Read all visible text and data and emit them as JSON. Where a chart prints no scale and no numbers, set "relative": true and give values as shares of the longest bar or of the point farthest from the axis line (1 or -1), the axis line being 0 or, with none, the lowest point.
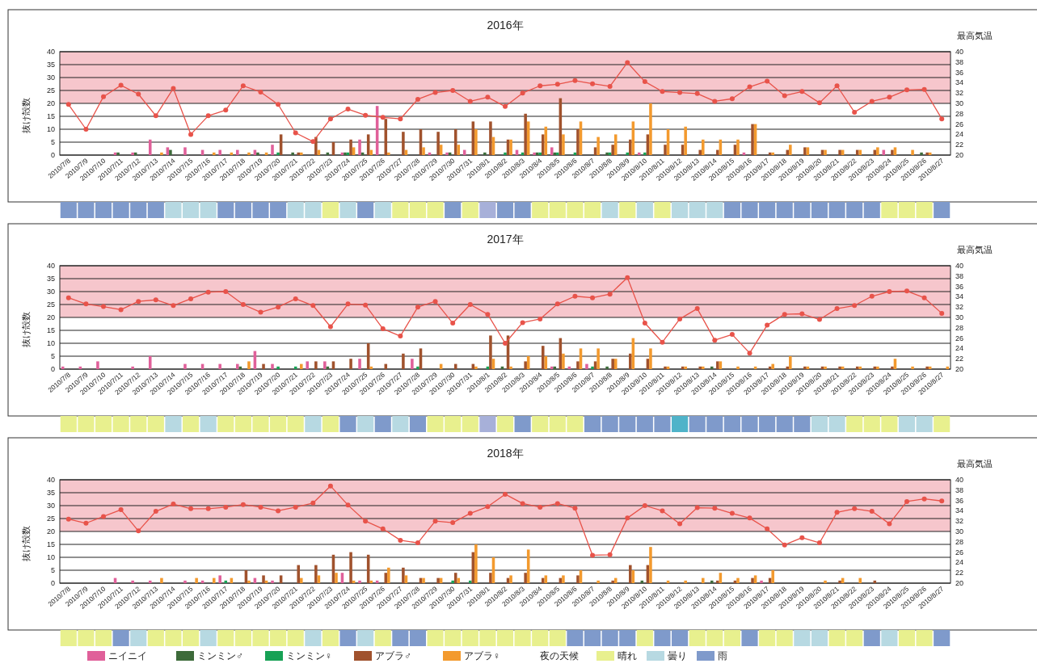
{
  "chart_data": [
    {
      "type": "bar",
      "title": "2016年",
      "ylabel": "抜け殻数",
      "y2label": "最高気温",
      "grid": "y",
      "marker": "circle",
      "legend": false,
      "categories": [
        "2010/7/8",
        "2010/7/9",
        "2010/7/10",
        "2010/7/11",
        "2010/7/12",
        "2010/7/13",
        "2010/7/14",
        "2010/7/15",
        "2010/7/16",
        "2010/7/17",
        "2010/7/18",
        "2010/7/19",
        "2010/7/20",
        "2010/7/21",
        "2010/7/22",
        "2010/7/23",
        "2010/7/24",
        "2010/7/25",
        "2010/7/26",
        "2010/7/27",
        "2010/7/28",
        "2010/7/29",
        "2010/7/30",
        "2010/7/31",
        "2010/8/1",
        "2010/8/2",
        "2010/8/3",
        "2010/8/4",
        "2010/8/5",
        "2010/8/6",
        "2010/8/7",
        "2010/8/8",
        "2010/8/9",
        "2010/8/10",
        "2010/8/11",
        "2010/8/12",
        "2010/8/13",
        "2010/8/14",
        "2010/8/15",
        "2010/8/16",
        "2010/8/17",
        "2010/8/18",
        "2010/8/19",
        "2010/8/20",
        "2010/8/21",
        "2010/8/22",
        "2010/8/23",
        "2010/8/24",
        "2010/8/25",
        "2010/8/26",
        "2010/8/27"
      ],
      "ylim": [
        0,
        40
      ],
      "yticks": [
        0,
        5,
        10,
        15,
        20,
        25,
        30,
        35,
        40
      ],
      "y2lim": [
        20,
        40
      ],
      "y2ticks": [
        20,
        22,
        24,
        26,
        28,
        30,
        32,
        34,
        36,
        38,
        40
      ],
      "series": [
        {
          "color": "#e0609a",
          "values": [
            0,
            0,
            0,
            1,
            1,
            6,
            3,
            3,
            2,
            2,
            2,
            2,
            4,
            0,
            0,
            0,
            1,
            6,
            19,
            0,
            0,
            1,
            1,
            2,
            0,
            0,
            2,
            1,
            3,
            0,
            0,
            0,
            0,
            1,
            0,
            0,
            0,
            0,
            0,
            1,
            0,
            0,
            0,
            0,
            0,
            0,
            0,
            2,
            0,
            0,
            0
          ]
        },
        {
          "color": "#3d6b3a",
          "values": [
            0,
            0,
            0,
            1,
            1,
            0,
            2,
            0,
            0,
            0,
            0,
            1,
            0,
            1,
            0,
            1,
            1,
            1,
            0,
            0,
            0,
            0,
            1,
            0,
            1,
            0,
            0,
            1,
            1,
            0,
            0,
            1,
            0,
            0,
            0,
            0,
            0,
            0,
            0,
            0,
            0,
            0,
            0,
            0,
            0,
            0,
            0,
            0,
            0,
            1,
            0
          ]
        },
        {
          "color": "#17a155",
          "values": [
            0,
            0,
            0,
            0,
            0,
            0,
            0,
            0,
            0,
            0,
            0,
            0,
            1,
            0,
            0,
            0,
            1,
            0,
            0,
            0,
            0,
            0,
            0,
            0,
            0,
            1,
            1,
            1,
            1,
            1,
            0,
            1,
            1,
            1,
            0,
            0,
            0,
            0,
            0,
            0,
            0,
            0,
            0,
            0,
            0,
            0,
            0,
            0,
            0,
            0,
            0
          ]
        },
        {
          "color": "#a0522d",
          "values": [
            0,
            0,
            0,
            0,
            0,
            0,
            0,
            0,
            0,
            0,
            0,
            0,
            8,
            1,
            7,
            5,
            6,
            8,
            14,
            9,
            10,
            9,
            10,
            13,
            13,
            6,
            16,
            8,
            22,
            10,
            3,
            4,
            6,
            8,
            4,
            4,
            2,
            2,
            4,
            12,
            1,
            2,
            3,
            2,
            2,
            2,
            2,
            2,
            0,
            1,
            0
          ]
        },
        {
          "color": "#f39a2e",
          "values": [
            0,
            0,
            0,
            0,
            0,
            1,
            0,
            0,
            1,
            1,
            1,
            1,
            0,
            1,
            2,
            0,
            3,
            2,
            1,
            2,
            3,
            4,
            4,
            10,
            7,
            6,
            13,
            11,
            8,
            13,
            7,
            8,
            13,
            20,
            10,
            11,
            6,
            6,
            6,
            12,
            1,
            4,
            3,
            2,
            2,
            2,
            3,
            3,
            2,
            1,
            0
          ]
        },
        {
          "type": "line",
          "axis": "y2",
          "color": "#e8534a",
          "values": [
            29.8,
            25.0,
            31.3,
            33.5,
            31.8,
            27.6,
            32.9,
            24.0,
            27.6,
            28.7,
            33.4,
            32.2,
            29.8,
            24.3,
            22.6,
            27.0,
            28.9,
            27.7,
            27.3,
            27.0,
            30.8,
            32.1,
            32.5,
            30.4,
            31.2,
            29.4,
            32.0,
            33.4,
            33.7,
            34.4,
            33.8,
            33.3,
            37.9,
            34.2,
            32.3,
            32.1,
            31.9,
            30.4,
            30.9,
            33.2,
            34.3,
            31.5,
            32.3,
            30.1,
            33.4,
            28.3,
            30.4,
            31.2,
            32.6,
            32.7,
            27.0
          ]
        }
      ],
      "bands": [
        {
          "axis": "y2",
          "from": 30,
          "to": 40,
          "color": "#f6c6cc"
        }
      ]
    },
    {
      "type": "bar",
      "relative": true,
      "legend": false,
      "categories": [
        null,
        null,
        null,
        null,
        null,
        null,
        null,
        null,
        null,
        null,
        null,
        null,
        null,
        null,
        null,
        null,
        null,
        null,
        null,
        null,
        null,
        null,
        null,
        null,
        null,
        null,
        null,
        null,
        null,
        null,
        null,
        null,
        null,
        null,
        null,
        null,
        null,
        null,
        null,
        null,
        null,
        null,
        null,
        null,
        null,
        null,
        null,
        null,
        null,
        null,
        null
      ],
      "series": [
        {
          "color": "#e8f08e",
          "values": [
            null,
            null,
            null,
            null,
            null,
            null,
            null,
            null,
            null,
            null,
            null,
            null,
            null,
            null,
            null,
            1,
            null,
            null,
            null,
            1,
            1,
            1,
            null,
            1,
            null,
            null,
            null,
            1,
            1,
            1,
            1,
            null,
            1,
            null,
            1,
            null,
            null,
            null,
            null,
            null,
            null,
            null,
            null,
            null,
            null,
            null,
            null,
            1,
            1,
            1,
            null
          ]
        },
        {
          "color": "#b7d9e2",
          "values": [
            null,
            null,
            null,
            null,
            null,
            null,
            1,
            1,
            1,
            null,
            null,
            null,
            null,
            1,
            1,
            null,
            1,
            null,
            1,
            null,
            null,
            null,
            null,
            null,
            null,
            null,
            null,
            null,
            null,
            null,
            null,
            1,
            null,
            1,
            null,
            1,
            1,
            1,
            null,
            null,
            null,
            null,
            null,
            null,
            null,
            null,
            null,
            null,
            null,
            null,
            null
          ]
        },
        {
          "color": "#7f9acb",
          "values": [
            1,
            1,
            1,
            1,
            1,
            1,
            null,
            null,
            null,
            1,
            1,
            1,
            1,
            null,
            null,
            null,
            null,
            1,
            null,
            null,
            null,
            null,
            1,
            null,
            null,
            1,
            1,
            null,
            null,
            null,
            null,
            null,
            null,
            null,
            null,
            null,
            null,
            null,
            1,
            1,
            1,
            1,
            1,
            1,
            1,
            1,
            1,
            null,
            null,
            null,
            1
          ]
        },
        {
          "color": "#a7b0d9",
          "values": [
            null,
            null,
            null,
            null,
            null,
            null,
            null,
            null,
            null,
            null,
            null,
            null,
            null,
            null,
            null,
            null,
            null,
            null,
            null,
            null,
            null,
            null,
            null,
            null,
            1,
            null,
            null,
            null,
            null,
            null,
            null,
            null,
            null,
            null,
            null,
            null,
            null,
            null,
            null,
            null,
            null,
            null,
            null,
            null,
            null,
            null,
            null,
            null,
            null,
            null,
            null
          ]
        }
      ]
    },
    {
      "type": "bar",
      "title": "2017年",
      "ylabel": "抜け殻数",
      "y2label": "最高気温",
      "grid": "y",
      "marker": "circle",
      "legend": false,
      "categories": [
        "2010/7/8",
        "2010/7/9",
        "2010/7/10",
        "2010/7/11",
        "2010/7/12",
        "2010/7/13",
        "2010/7/14",
        "2010/7/15",
        "2010/7/16",
        "2010/7/17",
        "2010/7/18",
        "2010/7/19",
        "2010/7/20",
        "2010/7/21",
        "2010/7/22",
        "2010/7/23",
        "2010/7/24",
        "2010/7/25",
        "2010/7/26",
        "2010/7/27",
        "2010/7/28",
        "2010/7/29",
        "2010/7/30",
        "2010/7/31",
        "2010/8/1",
        "2010/8/2",
        "2010/8/3",
        "2010/8/4",
        "2010/8/5",
        "2010/8/6",
        "2010/8/7",
        "2010/8/8",
        "2010/8/9",
        "2010/8/10",
        "2010/8/11",
        "2010/8/12",
        "2010/8/13",
        "2010/8/14",
        "2010/8/15",
        "2010/8/16",
        "2010/8/17",
        "2010/8/18",
        "2010/8/19",
        "2010/8/20",
        "2010/8/21",
        "2010/8/22",
        "2010/8/23",
        "2010/8/24",
        "2010/8/25",
        "2010/8/26",
        "2010/8/27"
      ],
      "ylim": [
        0,
        40
      ],
      "yticks": [
        0,
        5,
        10,
        15,
        20,
        25,
        30,
        35,
        40
      ],
      "y2lim": [
        20,
        40
      ],
      "y2ticks": [
        20,
        22,
        24,
        26,
        28,
        30,
        32,
        34,
        36,
        38,
        40
      ],
      "series": [
        {
          "color": "#e0609a",
          "values": [
            1,
            1,
            3,
            0,
            1,
            5,
            0,
            2,
            2,
            2,
            2,
            7,
            2,
            0,
            3,
            3,
            0,
            4,
            0,
            0,
            4,
            0,
            0,
            0,
            0,
            0,
            0,
            0,
            1,
            1,
            2,
            0,
            0,
            0,
            0,
            0,
            0,
            0,
            0,
            0,
            0,
            0,
            0,
            0,
            0,
            0,
            0,
            0,
            0,
            0,
            0
          ]
        },
        {
          "color": "#3d6b3a",
          "values": [
            0,
            0,
            0,
            0,
            0,
            0,
            0,
            0,
            0,
            0,
            1,
            0,
            0,
            0,
            0,
            1,
            0,
            0,
            0,
            0,
            0,
            0,
            0,
            0,
            0,
            1,
            0,
            0,
            1,
            0,
            0,
            1,
            0,
            0,
            0,
            0,
            0,
            1,
            0,
            0,
            0,
            0,
            0,
            0,
            0,
            0,
            0,
            0,
            0,
            0,
            0
          ]
        },
        {
          "color": "#17a155",
          "values": [
            0,
            0,
            0,
            0,
            0,
            0,
            0,
            0,
            0,
            0,
            0,
            0,
            1,
            1,
            0,
            0,
            0,
            0,
            0,
            0,
            1,
            0,
            0,
            0,
            1,
            0,
            0,
            0,
            0,
            0,
            1,
            0,
            0,
            0,
            0,
            0,
            0,
            0,
            0,
            0,
            0,
            0,
            0,
            0,
            0,
            0,
            0,
            0,
            0,
            0,
            0
          ]
        },
        {
          "color": "#a0522d",
          "values": [
            0,
            0,
            0,
            0,
            0,
            0,
            0,
            0,
            0,
            0,
            0,
            2,
            0,
            0,
            3,
            3,
            4,
            10,
            2,
            6,
            8,
            0,
            2,
            2,
            13,
            13,
            3,
            9,
            12,
            3,
            3,
            4,
            6,
            4,
            1,
            1,
            1,
            3,
            0,
            0,
            1,
            1,
            1,
            1,
            1,
            1,
            1,
            1,
            0,
            1,
            0
          ]
        },
        {
          "color": "#f39a2e",
          "values": [
            0,
            0,
            0,
            0,
            0,
            0,
            0,
            0,
            0,
            0,
            3,
            0,
            0,
            2,
            0,
            0,
            0,
            1,
            0,
            0,
            0,
            2,
            0,
            1,
            4,
            1,
            5,
            5,
            6,
            8,
            8,
            4,
            12,
            8,
            1,
            1,
            1,
            3,
            1,
            1,
            2,
            5,
            1,
            1,
            1,
            1,
            1,
            4,
            1,
            1,
            1
          ]
        },
        {
          "type": "line",
          "axis": "y2",
          "color": "#e8534a",
          "values": [
            33.8,
            32.6,
            32.1,
            31.5,
            33.1,
            33.4,
            32.3,
            33.6,
            34.9,
            35.0,
            32.5,
            31.0,
            32.0,
            33.6,
            32.3,
            28.2,
            32.6,
            32.4,
            27.8,
            26.4,
            32.0,
            33.1,
            28.9,
            32.5,
            30.6,
            25.0,
            29.0,
            29.7,
            32.6,
            34.1,
            33.8,
            34.5,
            37.7,
            28.9,
            25.2,
            29.7,
            31.7,
            25.6,
            26.7,
            23.1,
            28.5,
            30.6,
            30.7,
            29.6,
            31.7,
            32.3,
            34.1,
            35.0,
            35.1,
            33.8,
            30.8
          ]
        }
      ],
      "bands": [
        {
          "axis": "y2",
          "from": 30,
          "to": 40,
          "color": "#f6c6cc"
        }
      ]
    },
    {
      "type": "bar",
      "relative": true,
      "legend": false,
      "categories": [
        null,
        null,
        null,
        null,
        null,
        null,
        null,
        null,
        null,
        null,
        null,
        null,
        null,
        null,
        null,
        null,
        null,
        null,
        null,
        null,
        null,
        null,
        null,
        null,
        null,
        null,
        null,
        null,
        null,
        null,
        null,
        null,
        null,
        null,
        null,
        null,
        null,
        null,
        null,
        null,
        null,
        null,
        null,
        null,
        null,
        null,
        null,
        null,
        null,
        null,
        null
      ],
      "series": [
        {
          "color": "#e8f08e",
          "values": [
            1,
            1,
            1,
            1,
            1,
            1,
            null,
            1,
            null,
            1,
            1,
            1,
            1,
            1,
            null,
            1,
            null,
            null,
            null,
            null,
            null,
            1,
            1,
            1,
            null,
            1,
            null,
            1,
            1,
            1,
            null,
            null,
            null,
            null,
            null,
            null,
            null,
            null,
            null,
            null,
            null,
            null,
            null,
            null,
            null,
            1,
            1,
            1,
            null,
            null,
            1
          ]
        },
        {
          "color": "#b7d9e2",
          "values": [
            null,
            null,
            null,
            null,
            null,
            null,
            1,
            null,
            1,
            null,
            null,
            null,
            null,
            null,
            1,
            null,
            null,
            1,
            null,
            1,
            null,
            null,
            null,
            null,
            null,
            null,
            null,
            null,
            null,
            null,
            null,
            null,
            null,
            null,
            null,
            null,
            null,
            null,
            null,
            null,
            null,
            null,
            null,
            1,
            1,
            null,
            null,
            null,
            1,
            1,
            null
          ]
        },
        {
          "color": "#7f9acb",
          "values": [
            null,
            null,
            null,
            null,
            null,
            null,
            null,
            null,
            null,
            null,
            null,
            null,
            null,
            null,
            null,
            null,
            1,
            null,
            1,
            null,
            1,
            null,
            null,
            null,
            null,
            null,
            1,
            null,
            null,
            null,
            1,
            1,
            1,
            1,
            1,
            null,
            1,
            1,
            1,
            1,
            1,
            1,
            1,
            null,
            null,
            null,
            null,
            null,
            null,
            null,
            null
          ]
        },
        {
          "color": "#a7b0d9",
          "values": [
            null,
            null,
            null,
            null,
            null,
            null,
            null,
            null,
            null,
            null,
            null,
            null,
            null,
            null,
            null,
            null,
            null,
            null,
            null,
            null,
            null,
            null,
            null,
            null,
            1,
            null,
            null,
            null,
            null,
            null,
            null,
            null,
            null,
            null,
            null,
            null,
            null,
            null,
            null,
            null,
            null,
            null,
            null,
            null,
            null,
            null,
            null,
            null,
            null,
            null,
            null
          ]
        },
        {
          "color": "#4fb3c9",
          "values": [
            null,
            null,
            null,
            null,
            null,
            null,
            null,
            null,
            null,
            null,
            null,
            null,
            null,
            null,
            null,
            null,
            null,
            null,
            null,
            null,
            null,
            null,
            null,
            null,
            null,
            null,
            null,
            null,
            null,
            null,
            null,
            null,
            null,
            null,
            null,
            1,
            null,
            null,
            null,
            null,
            null,
            null,
            null,
            null,
            null,
            null,
            null,
            null,
            null,
            null,
            null
          ]
        }
      ]
    },
    {
      "type": "bar",
      "title": "2018年",
      "ylabel": "抜け殻数",
      "y2label": "最高気温",
      "grid": "y",
      "marker": "circle",
      "legend": "bottom",
      "categories": [
        "2010/7/8",
        "2010/7/9",
        "2010/7/10",
        "2010/7/11",
        "2010/7/12",
        "2010/7/13",
        "2010/7/14",
        "2010/7/15",
        "2010/7/16",
        "2010/7/17",
        "2010/7/18",
        "2010/7/19",
        "2010/7/20",
        "2010/7/21",
        "2010/7/22",
        "2010/7/23",
        "2010/7/24",
        "2010/7/25",
        "2010/7/26",
        "2010/7/27",
        "2010/7/28",
        "2010/7/29",
        "2010/7/30",
        "2010/7/31",
        "2010/8/1",
        "2010/8/2",
        "2010/8/3",
        "2010/8/4",
        "2010/8/5",
        "2010/8/6",
        "2010/8/7",
        "2010/8/8",
        "2010/8/9",
        "2010/8/10",
        "2010/8/11",
        "2010/8/12",
        "2010/8/13",
        "2010/8/14",
        "2010/8/15",
        "2010/8/16",
        "2010/8/17",
        "2010/8/18",
        "2010/8/19",
        "2010/8/20",
        "2010/8/21",
        "2010/8/22",
        "2010/8/23",
        "2010/8/24",
        "2010/8/25",
        "2010/8/26",
        "2010/8/27"
      ],
      "ylim": [
        0,
        40
      ],
      "yticks": [
        0,
        5,
        10,
        15,
        20,
        25,
        30,
        35,
        40
      ],
      "y2lim": [
        20,
        40
      ],
      "y2ticks": [
        20,
        22,
        24,
        26,
        28,
        30,
        32,
        34,
        36,
        38,
        40
      ],
      "series": [
        {
          "name": "ニイニイ",
          "color": "#e0609a",
          "values": [
            0,
            0,
            0,
            2,
            1,
            1,
            0,
            1,
            1,
            3,
            0,
            2,
            1,
            0,
            0,
            0,
            4,
            1,
            1,
            0,
            0,
            0,
            0,
            0,
            0,
            0,
            0,
            0,
            0,
            0,
            0,
            0,
            0,
            0,
            0,
            0,
            0,
            0,
            0,
            0,
            1,
            0,
            0,
            0,
            0,
            0,
            0,
            0,
            0,
            0,
            0
          ]
        },
        {
          "name": "ミンミン♂",
          "color": "#3d6b3a",
          "values": [
            0,
            0,
            0,
            0,
            0,
            0,
            0,
            0,
            0,
            0,
            0,
            0,
            0,
            0,
            0,
            0,
            0,
            0,
            0,
            0,
            0,
            0,
            0,
            0,
            0,
            0,
            0,
            0,
            0,
            0,
            0,
            0,
            0,
            1,
            0,
            0,
            0,
            1,
            0,
            0,
            0,
            0,
            0,
            0,
            0,
            0,
            0,
            0,
            0,
            0,
            0
          ]
        },
        {
          "name": "ミンミン♀",
          "color": "#17a155",
          "values": [
            0,
            0,
            0,
            0,
            0,
            0,
            0,
            0,
            0,
            1,
            0,
            0,
            0,
            0,
            0,
            0,
            0,
            0,
            0,
            0,
            0,
            0,
            1,
            1,
            0,
            0,
            0,
            0,
            0,
            0,
            0,
            0,
            0,
            0,
            0,
            0,
            0,
            0,
            0,
            0,
            0,
            0,
            0,
            0,
            0,
            0,
            0,
            0,
            0,
            0,
            0
          ]
        },
        {
          "name": "アブラ♂",
          "color": "#a0522d",
          "values": [
            0,
            0,
            0,
            0,
            0,
            0,
            0,
            0,
            0,
            0,
            5,
            3,
            3,
            7,
            7,
            11,
            12,
            11,
            4,
            6,
            2,
            2,
            4,
            12,
            4,
            2,
            4,
            2,
            2,
            3,
            0,
            1,
            7,
            7,
            0,
            0,
            0,
            1,
            1,
            2,
            2,
            0,
            0,
            0,
            1,
            0,
            1,
            0,
            0,
            0,
            0
          ]
        },
        {
          "name": "アブラ♀",
          "color": "#f39a2e",
          "values": [
            0,
            0,
            0,
            0,
            0,
            2,
            0,
            2,
            2,
            2,
            1,
            1,
            0,
            2,
            3,
            4,
            1,
            1,
            6,
            3,
            2,
            2,
            2,
            15,
            10,
            3,
            13,
            3,
            3,
            5,
            1,
            2,
            5,
            14,
            1,
            1,
            2,
            4,
            2,
            3,
            5,
            0,
            0,
            1,
            2,
            2,
            0,
            0,
            0,
            0,
            0
          ]
        },
        {
          "type": "line",
          "axis": "y2",
          "color": "#e8534a",
          "values": [
            32.4,
            31.6,
            32.9,
            34.2,
            30.1,
            33.9,
            35.3,
            34.4,
            34.4,
            34.7,
            35.2,
            34.7,
            34.0,
            34.7,
            35.5,
            38.8,
            35.1,
            32.0,
            30.5,
            28.3,
            27.8,
            32.0,
            31.7,
            33.5,
            34.8,
            37.2,
            35.4,
            34.7,
            35.4,
            34.5,
            25.4,
            25.5,
            32.6,
            35.0,
            34.0,
            31.5,
            34.6,
            34.5,
            33.5,
            32.6,
            30.5,
            27.4,
            28.8,
            27.8,
            33.7,
            34.4,
            33.9,
            31.5,
            35.8,
            36.3,
            35.9
          ]
        }
      ],
      "bands": [
        {
          "axis": "y2",
          "from": 30,
          "to": 40,
          "color": "#f6c6cc"
        }
      ]
    },
    {
      "type": "bar",
      "relative": true,
      "legend": "bottom",
      "legend_title": "夜の天候",
      "categories": [
        null,
        null,
        null,
        null,
        null,
        null,
        null,
        null,
        null,
        null,
        null,
        null,
        null,
        null,
        null,
        null,
        null,
        null,
        null,
        null,
        null,
        null,
        null,
        null,
        null,
        null,
        null,
        null,
        null,
        null,
        null,
        null,
        null,
        null,
        null,
        null,
        null,
        null,
        null,
        null,
        null,
        null,
        null,
        null,
        null,
        null,
        null,
        null,
        null,
        null,
        null
      ],
      "series": [
        {
          "name": "晴れ",
          "color": "#e8f08e",
          "values": [
            1,
            1,
            1,
            null,
            null,
            1,
            1,
            1,
            null,
            1,
            1,
            1,
            1,
            1,
            null,
            1,
            null,
            null,
            1,
            null,
            null,
            1,
            1,
            1,
            1,
            1,
            1,
            1,
            1,
            null,
            null,
            null,
            null,
            1,
            null,
            null,
            1,
            1,
            1,
            null,
            1,
            1,
            null,
            null,
            1,
            1,
            null,
            null,
            1,
            1,
            null
          ]
        },
        {
          "name": "曇り",
          "color": "#b7d9e2",
          "values": [
            null,
            null,
            null,
            null,
            1,
            null,
            null,
            null,
            1,
            null,
            null,
            null,
            null,
            null,
            1,
            null,
            null,
            1,
            null,
            null,
            null,
            null,
            null,
            null,
            null,
            null,
            null,
            null,
            null,
            null,
            null,
            null,
            null,
            null,
            null,
            null,
            null,
            null,
            null,
            null,
            null,
            null,
            1,
            1,
            null,
            null,
            null,
            1,
            null,
            null,
            null
          ]
        },
        {
          "name": "雨",
          "color": "#7f9acb",
          "values": [
            null,
            null,
            null,
            1,
            null,
            null,
            null,
            null,
            null,
            null,
            null,
            null,
            null,
            null,
            null,
            null,
            1,
            null,
            null,
            1,
            1,
            null,
            null,
            null,
            null,
            null,
            null,
            null,
            null,
            1,
            1,
            1,
            1,
            null,
            1,
            1,
            null,
            null,
            null,
            1,
            null,
            null,
            null,
            null,
            null,
            null,
            1,
            null,
            null,
            null,
            1
          ]
        }
      ]
    }
  ]
}
